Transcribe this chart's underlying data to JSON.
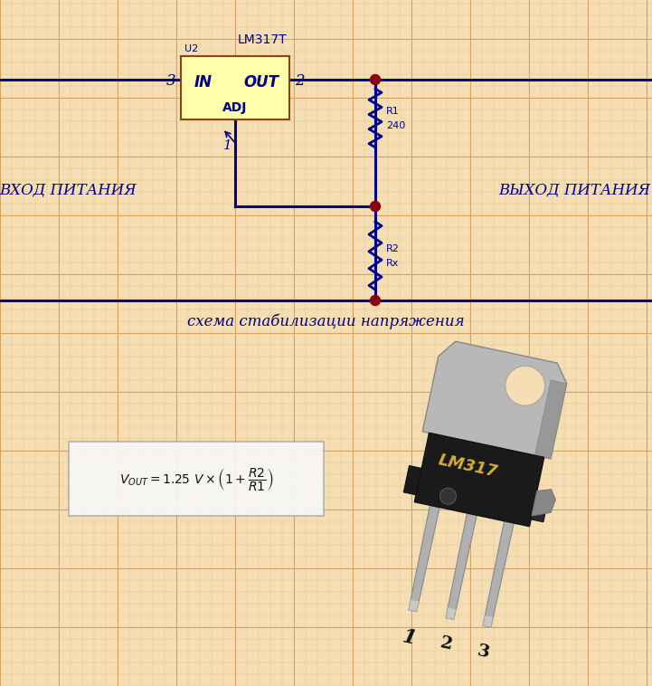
{
  "bg_color": "#f5deb3",
  "grid_fine_color": "#e8c88a",
  "grid_coarse_color": "#d4a060",
  "wire_color": "#00008B",
  "dot_color": "#8B0000",
  "ic_fill": "#ffffaa",
  "ic_border": "#8B4513",
  "title": "LM317T",
  "subtitle": "схема стабилизации напряжения",
  "left_label": "ВХОД ПИТАНИЯ",
  "right_label": "ВЫХОД ПИТАНИЯ",
  "ic_in": "IN",
  "ic_out": "OUT",
  "ic_adj": "ADJ",
  "ic_ref": "U2",
  "r1_label": "R1",
  "r1_value": "240",
  "r2_label": "R2",
  "r2_value": "Rx",
  "lm317_label": "LM317",
  "pin_labels": [
    "1",
    "2",
    "3"
  ],
  "fig_w": 7.21,
  "fig_h": 7.58,
  "dpi": 100
}
